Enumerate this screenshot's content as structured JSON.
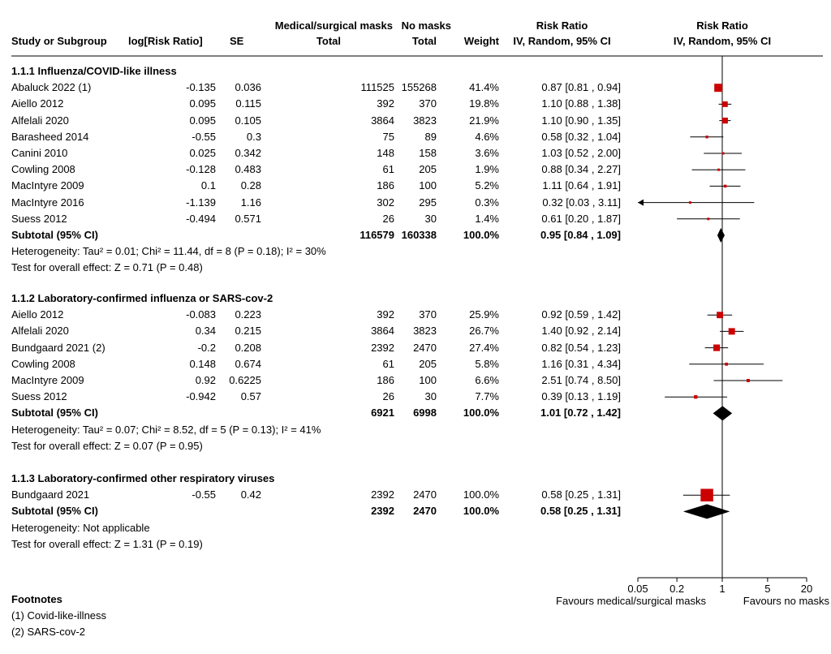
{
  "header": {
    "group_exp": "Medical/surgical masks",
    "group_ctl": "No masks",
    "study": "Study or Subgroup",
    "logrr": "log[Risk Ratio]",
    "se": "SE",
    "total_exp": "Total",
    "total_ctl": "Total",
    "weight": "Weight",
    "rr_title": "Risk Ratio",
    "rr_method": "IV, Random, 95% CI",
    "plot_title": "Risk Ratio",
    "plot_method": "IV, Random, 95% CI"
  },
  "groups": [
    {
      "title": "1.1.1 Influenza/COVID-like illness",
      "studies": [
        {
          "name": "Abaluck 2022 (1)",
          "logrr": "-0.135",
          "se": "0.036",
          "te": "111525",
          "tc": "155268",
          "weight": "41.4%",
          "ci": "0.87 [0.81 , 0.94]",
          "rr": 0.87,
          "lo": 0.81,
          "hi": 0.94,
          "w": 41.4
        },
        {
          "name": "Aiello 2012",
          "logrr": "0.095",
          "se": "0.115",
          "te": "392",
          "tc": "370",
          "weight": "19.8%",
          "ci": "1.10 [0.88 , 1.38]",
          "rr": 1.1,
          "lo": 0.88,
          "hi": 1.38,
          "w": 19.8
        },
        {
          "name": "Alfelali 2020",
          "logrr": "0.095",
          "se": "0.105",
          "te": "3864",
          "tc": "3823",
          "weight": "21.9%",
          "ci": "1.10 [0.90 , 1.35]",
          "rr": 1.1,
          "lo": 0.9,
          "hi": 1.35,
          "w": 21.9
        },
        {
          "name": "Barasheed 2014",
          "logrr": "-0.55",
          "se": "0.3",
          "te": "75",
          "tc": "89",
          "weight": "4.6%",
          "ci": "0.58 [0.32 , 1.04]",
          "rr": 0.58,
          "lo": 0.32,
          "hi": 1.04,
          "w": 4.6
        },
        {
          "name": "Canini 2010",
          "logrr": "0.025",
          "se": "0.342",
          "te": "148",
          "tc": "158",
          "weight": "3.6%",
          "ci": "1.03 [0.52 , 2.00]",
          "rr": 1.03,
          "lo": 0.52,
          "hi": 2.0,
          "w": 3.6
        },
        {
          "name": "Cowling 2008",
          "logrr": "-0.128",
          "se": "0.483",
          "te": "61",
          "tc": "205",
          "weight": "1.9%",
          "ci": "0.88 [0.34 , 2.27]",
          "rr": 0.88,
          "lo": 0.34,
          "hi": 2.27,
          "w": 1.9
        },
        {
          "name": "MacIntyre 2009",
          "logrr": "0.1",
          "se": "0.28",
          "te": "186",
          "tc": "100",
          "weight": "5.2%",
          "ci": "1.11 [0.64 , 1.91]",
          "rr": 1.11,
          "lo": 0.64,
          "hi": 1.91,
          "w": 5.2
        },
        {
          "name": "MacIntyre 2016",
          "logrr": "-1.139",
          "se": "1.16",
          "te": "302",
          "tc": "295",
          "weight": "0.3%",
          "ci": "0.32 [0.03 , 3.11]",
          "rr": 0.32,
          "lo": 0.03,
          "hi": 3.11,
          "w": 0.3
        },
        {
          "name": "Suess 2012",
          "logrr": "-0.494",
          "se": "0.571",
          "te": "26",
          "tc": "30",
          "weight": "1.4%",
          "ci": "0.61 [0.20 , 1.87]",
          "rr": 0.61,
          "lo": 0.2,
          "hi": 1.87,
          "w": 1.4
        }
      ],
      "subtotal": {
        "label": "Subtotal (95% CI)",
        "te": "116579",
        "tc": "160338",
        "weight": "100.0%",
        "ci": "0.95 [0.84 , 1.09]",
        "rr": 0.95,
        "lo": 0.84,
        "hi": 1.09
      },
      "heterogeneity": "Heterogeneity: Tau² = 0.01; Chi² = 11.44, df = 8 (P = 0.18); I² = 30%",
      "overall": "Test for overall effect: Z = 0.71 (P = 0.48)"
    },
    {
      "title": "1.1.2 Laboratory-confirmed influenza or SARS-cov-2",
      "studies": [
        {
          "name": "Aiello 2012",
          "logrr": "-0.083",
          "se": "0.223",
          "te": "392",
          "tc": "370",
          "weight": "25.9%",
          "ci": "0.92 [0.59 , 1.42]",
          "rr": 0.92,
          "lo": 0.59,
          "hi": 1.42,
          "w": 25.9
        },
        {
          "name": "Alfelali 2020",
          "logrr": "0.34",
          "se": "0.215",
          "te": "3864",
          "tc": "3823",
          "weight": "26.7%",
          "ci": "1.40 [0.92 , 2.14]",
          "rr": 1.4,
          "lo": 0.92,
          "hi": 2.14,
          "w": 26.7
        },
        {
          "name": "Bundgaard 2021 (2)",
          "logrr": "-0.2",
          "se": "0.208",
          "te": "2392",
          "tc": "2470",
          "weight": "27.4%",
          "ci": "0.82 [0.54 , 1.23]",
          "rr": 0.82,
          "lo": 0.54,
          "hi": 1.23,
          "w": 27.4
        },
        {
          "name": "Cowling 2008",
          "logrr": "0.148",
          "se": "0.674",
          "te": "61",
          "tc": "205",
          "weight": "5.8%",
          "ci": "1.16 [0.31 , 4.34]",
          "rr": 1.16,
          "lo": 0.31,
          "hi": 4.34,
          "w": 5.8
        },
        {
          "name": "MacIntyre 2009",
          "logrr": "0.92",
          "se": "0.6225",
          "te": "186",
          "tc": "100",
          "weight": "6.6%",
          "ci": "2.51 [0.74 , 8.50]",
          "rr": 2.51,
          "lo": 0.74,
          "hi": 8.5,
          "w": 6.6
        },
        {
          "name": "Suess 2012",
          "logrr": "-0.942",
          "se": "0.57",
          "te": "26",
          "tc": "30",
          "weight": "7.7%",
          "ci": "0.39 [0.13 , 1.19]",
          "rr": 0.39,
          "lo": 0.13,
          "hi": 1.19,
          "w": 7.7
        }
      ],
      "subtotal": {
        "label": "Subtotal (95% CI)",
        "te": "6921",
        "tc": "6998",
        "weight": "100.0%",
        "ci": "1.01 [0.72 , 1.42]",
        "rr": 1.01,
        "lo": 0.72,
        "hi": 1.42
      },
      "heterogeneity": "Heterogeneity: Tau² = 0.07; Chi² = 8.52, df = 5 (P = 0.13); I² = 41%",
      "overall": "Test for overall effect: Z = 0.07 (P = 0.95)"
    },
    {
      "title": "1.1.3 Laboratory-confirmed other respiratory viruses",
      "studies": [
        {
          "name": "Bundgaard 2021",
          "logrr": "-0.55",
          "se": "0.42",
          "te": "2392",
          "tc": "2470",
          "weight": "100.0%",
          "ci": "0.58 [0.25 , 1.31]",
          "rr": 0.58,
          "lo": 0.25,
          "hi": 1.31,
          "w": 100.0
        }
      ],
      "subtotal": {
        "label": "Subtotal (95% CI)",
        "te": "2392",
        "tc": "2470",
        "weight": "100.0%",
        "ci": "0.58 [0.25 , 1.31]",
        "rr": 0.58,
        "lo": 0.25,
        "hi": 1.31
      },
      "heterogeneity": "Heterogeneity: Not applicable",
      "overall": "Test for overall effect: Z = 1.31 (P = 0.19)"
    }
  ],
  "footnotes": {
    "title": "Footnotes",
    "items": [
      "(1) Covid-like-illness",
      "(2) SARS-cov-2"
    ]
  },
  "chart_data": {
    "type": "scatter",
    "x_scale": "log",
    "xlim": [
      0.05,
      20
    ],
    "x_ticks": [
      0.05,
      0.2,
      1,
      5,
      20
    ],
    "x_tick_labels": [
      "0.05",
      "0.2",
      "1",
      "5",
      "20"
    ],
    "reference_line": 1,
    "left_label": "Favours medical/surgical masks",
    "right_label": "Favours no masks",
    "colors": {
      "marker": "#cc0000",
      "line": "#000000"
    }
  }
}
